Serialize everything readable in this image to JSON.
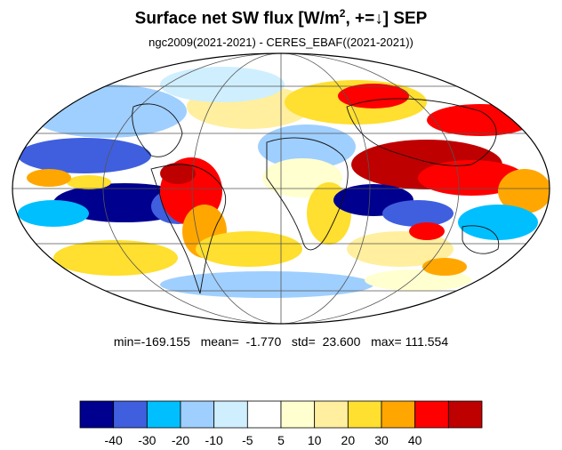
{
  "title": {
    "main": "Surface net SW flux [W/m",
    "sup": "2",
    "rest": ", +=↓]  SEP"
  },
  "subtitle": "ngc2009(2021-2021) - CERES_EBAF((2021-2021))",
  "stats": {
    "min_label": "min=",
    "min": "-169.155",
    "mean_label": "mean=",
    "mean": "-1.770",
    "std_label": "std=",
    "std": "23.600",
    "max_label": "max=",
    "max": "111.554"
  },
  "colorbar": {
    "colors": [
      "#00008f",
      "#3f5fdf",
      "#00bfff",
      "#9fcfff",
      "#cfefff",
      "#ffffff",
      "#ffffcf",
      "#ffef9f",
      "#ffdf2f",
      "#ffa700",
      "#ff0000",
      "#bf0000"
    ],
    "tick_labels": [
      "-40",
      "-30",
      "-20",
      "-10",
      "-5",
      "5",
      "10",
      "20",
      "30",
      "40"
    ]
  }
}
